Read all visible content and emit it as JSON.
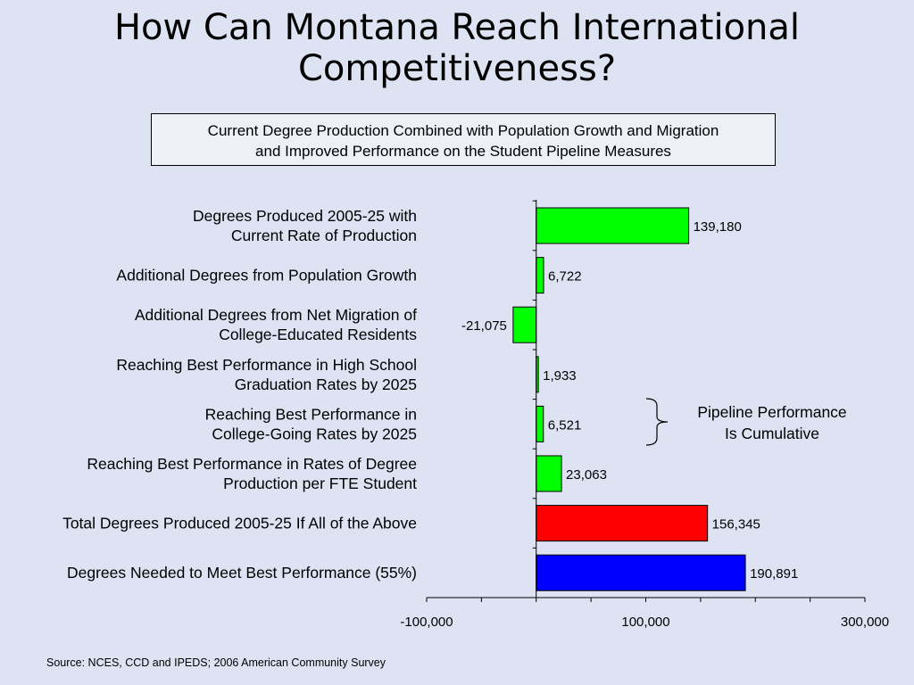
{
  "title_lines": [
    "How Can Montana Reach International",
    "Competitiveness?"
  ],
  "subtitle_lines": [
    "Current Degree Production Combined with Population Growth and Migration",
    "and Improved Performance on the Student Pipeline Measures"
  ],
  "source": "Source:  NCES, CCD and IPEDS; 2006 American Community Survey",
  "annotation_lines": [
    "Pipeline Performance",
    "Is Cumulative"
  ],
  "colors": {
    "green": "#00ff00",
    "red": "#ff0000",
    "blue": "#0000ff",
    "background": "#dde3f3"
  },
  "chart_data": {
    "type": "bar",
    "orientation": "horizontal",
    "xlim": [
      -100000,
      300000
    ],
    "x_ticks": [
      -100000,
      100000,
      300000
    ],
    "x_tick_labels": [
      "-100,000",
      "100,000",
      "300,000"
    ],
    "grid": false,
    "bars": [
      {
        "label_lines": [
          "Degrees Produced 2005-25 with",
          "Current Rate of Production"
        ],
        "value": 139180,
        "value_label": "139,180",
        "color": "green"
      },
      {
        "label_lines": [
          "Additional Degrees from Population Growth"
        ],
        "value": 6722,
        "value_label": "6,722",
        "color": "green"
      },
      {
        "label_lines": [
          "Additional Degrees from Net Migration of",
          "College-Educated Residents"
        ],
        "value": -21075,
        "value_label": "-21,075",
        "color": "green"
      },
      {
        "label_lines": [
          "Reaching Best Performance in High School",
          "Graduation Rates by 2025"
        ],
        "value": 1933,
        "value_label": "1,933",
        "color": "green"
      },
      {
        "label_lines": [
          "Reaching Best Performance in",
          "College-Going Rates by 2025"
        ],
        "value": 6521,
        "value_label": "6,521",
        "color": "green"
      },
      {
        "label_lines": [
          "Reaching Best Performance in Rates of Degree",
          "Production per FTE Student"
        ],
        "value": 23063,
        "value_label": "23,063",
        "color": "green"
      },
      {
        "label_lines": [
          "Total Degrees Produced 2005-25 If All of the Above"
        ],
        "value": 156345,
        "value_label": "156,345",
        "color": "red"
      },
      {
        "label_lines": [
          "Degrees Needed to Meet Best Performance (55%)"
        ],
        "value": 190891,
        "value_label": "190,891",
        "color": "blue"
      }
    ]
  }
}
